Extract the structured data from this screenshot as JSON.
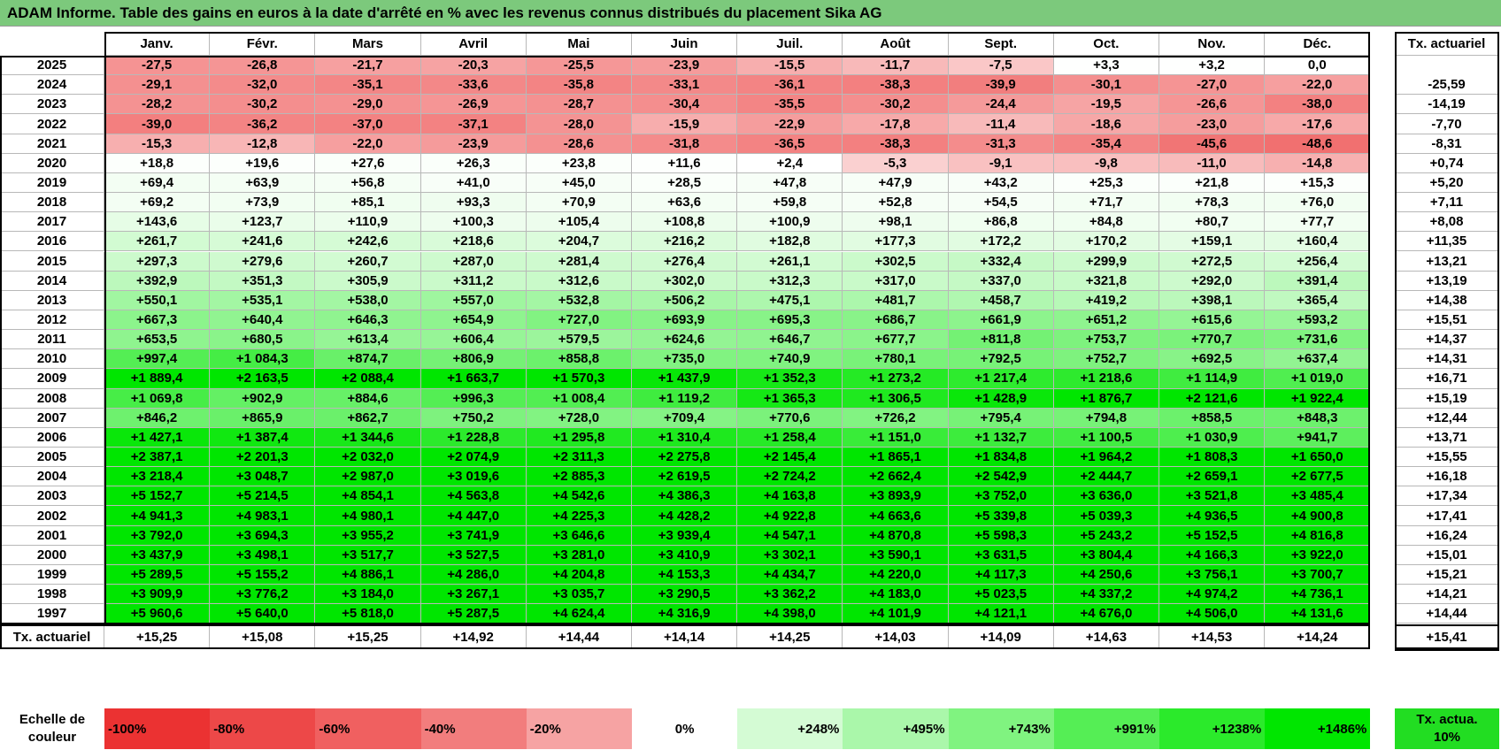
{
  "title": "ADAM Informe. Table des gains en euros à la date d'arrêté en % avec les revenus connus distribués du placement Sika AG",
  "months": [
    "Janv.",
    "Févr.",
    "Mars",
    "Avril",
    "Mai",
    "Juin",
    "Juil.",
    "Août",
    "Sept.",
    "Oct.",
    "Nov.",
    "Déc."
  ],
  "tx_header": "Tx. actuariel",
  "rows": [
    {
      "year": "2025",
      "values": [
        "-27,5",
        "-26,8",
        "-21,7",
        "-20,3",
        "-25,5",
        "-23,9",
        "-15,5",
        "-11,7",
        "-7,5",
        "+3,3",
        "+3,2",
        "0,0"
      ]
    },
    {
      "year": "2024",
      "values": [
        "-29,1",
        "-32,0",
        "-35,1",
        "-33,6",
        "-35,8",
        "-33,1",
        "-36,1",
        "-38,3",
        "-39,9",
        "-30,1",
        "-27,0",
        "-22,0"
      ],
      "tx": "-25,59"
    },
    {
      "year": "2023",
      "values": [
        "-28,2",
        "-30,2",
        "-29,0",
        "-26,9",
        "-28,7",
        "-30,4",
        "-35,5",
        "-30,2",
        "-24,4",
        "-19,5",
        "-26,6",
        "-38,0"
      ],
      "tx": "-14,19"
    },
    {
      "year": "2022",
      "values": [
        "-39,0",
        "-36,2",
        "-37,0",
        "-37,1",
        "-28,0",
        "-15,9",
        "-22,9",
        "-17,8",
        "-11,4",
        "-18,6",
        "-23,0",
        "-17,6"
      ],
      "tx": "-7,70"
    },
    {
      "year": "2021",
      "values": [
        "-15,3",
        "-12,8",
        "-22,0",
        "-23,9",
        "-28,6",
        "-31,8",
        "-36,5",
        "-38,3",
        "-31,3",
        "-35,4",
        "-45,6",
        "-48,6"
      ],
      "tx": "-8,31"
    },
    {
      "year": "2020",
      "values": [
        "+18,8",
        "+19,6",
        "+27,6",
        "+26,3",
        "+23,8",
        "+11,6",
        "+2,4",
        "-5,3",
        "-9,1",
        "-9,8",
        "-11,0",
        "-14,8"
      ],
      "tx": "+0,74"
    },
    {
      "year": "2019",
      "values": [
        "+69,4",
        "+63,9",
        "+56,8",
        "+41,0",
        "+45,0",
        "+28,5",
        "+47,8",
        "+47,9",
        "+43,2",
        "+25,3",
        "+21,8",
        "+15,3"
      ],
      "tx": "+5,20"
    },
    {
      "year": "2018",
      "values": [
        "+69,2",
        "+73,9",
        "+85,1",
        "+93,3",
        "+70,9",
        "+63,6",
        "+59,8",
        "+52,8",
        "+54,5",
        "+71,7",
        "+78,3",
        "+76,0"
      ],
      "tx": "+7,11"
    },
    {
      "year": "2017",
      "values": [
        "+143,6",
        "+123,7",
        "+110,9",
        "+100,3",
        "+105,4",
        "+108,8",
        "+100,9",
        "+98,1",
        "+86,8",
        "+84,8",
        "+80,7",
        "+77,7"
      ],
      "tx": "+8,08"
    },
    {
      "year": "2016",
      "values": [
        "+261,7",
        "+241,6",
        "+242,6",
        "+218,6",
        "+204,7",
        "+216,2",
        "+182,8",
        "+177,3",
        "+172,2",
        "+170,2",
        "+159,1",
        "+160,4"
      ],
      "tx": "+11,35"
    },
    {
      "year": "2015",
      "values": [
        "+297,3",
        "+279,6",
        "+260,7",
        "+287,0",
        "+281,4",
        "+276,4",
        "+261,1",
        "+302,5",
        "+332,4",
        "+299,9",
        "+272,5",
        "+256,4"
      ],
      "tx": "+13,21"
    },
    {
      "year": "2014",
      "values": [
        "+392,9",
        "+351,3",
        "+305,9",
        "+311,2",
        "+312,6",
        "+302,0",
        "+312,3",
        "+317,0",
        "+337,0",
        "+321,8",
        "+292,0",
        "+391,4"
      ],
      "tx": "+13,19"
    },
    {
      "year": "2013",
      "values": [
        "+550,1",
        "+535,1",
        "+538,0",
        "+557,0",
        "+532,8",
        "+506,2",
        "+475,1",
        "+481,7",
        "+458,7",
        "+419,2",
        "+398,1",
        "+365,4"
      ],
      "tx": "+14,38"
    },
    {
      "year": "2012",
      "values": [
        "+667,3",
        "+640,4",
        "+646,3",
        "+654,9",
        "+727,0",
        "+693,9",
        "+695,3",
        "+686,7",
        "+661,9",
        "+651,2",
        "+615,6",
        "+593,2"
      ],
      "tx": "+15,51"
    },
    {
      "year": "2011",
      "values": [
        "+653,5",
        "+680,5",
        "+613,4",
        "+606,4",
        "+579,5",
        "+624,6",
        "+646,7",
        "+677,7",
        "+811,8",
        "+753,7",
        "+770,7",
        "+731,6"
      ],
      "tx": "+14,37"
    },
    {
      "year": "2010",
      "values": [
        "+997,4",
        "+1 084,3",
        "+874,7",
        "+806,9",
        "+858,8",
        "+735,0",
        "+740,9",
        "+780,1",
        "+792,5",
        "+752,7",
        "+692,5",
        "+637,4"
      ],
      "tx": "+14,31"
    },
    {
      "year": "2009",
      "values": [
        "+1 889,4",
        "+2 163,5",
        "+2 088,4",
        "+1 663,7",
        "+1 570,3",
        "+1 437,9",
        "+1 352,3",
        "+1 273,2",
        "+1 217,4",
        "+1 218,6",
        "+1 114,9",
        "+1 019,0"
      ],
      "tx": "+16,71"
    },
    {
      "year": "2008",
      "values": [
        "+1 069,8",
        "+902,9",
        "+884,6",
        "+996,3",
        "+1 008,4",
        "+1 119,2",
        "+1 365,3",
        "+1 306,5",
        "+1 428,9",
        "+1 876,7",
        "+2 121,6",
        "+1 922,4"
      ],
      "tx": "+15,19"
    },
    {
      "year": "2007",
      "values": [
        "+846,2",
        "+865,9",
        "+862,7",
        "+750,2",
        "+728,0",
        "+709,4",
        "+770,6",
        "+726,2",
        "+795,4",
        "+794,8",
        "+858,5",
        "+848,3"
      ],
      "tx": "+12,44"
    },
    {
      "year": "2006",
      "values": [
        "+1 427,1",
        "+1 387,4",
        "+1 344,6",
        "+1 228,8",
        "+1 295,8",
        "+1 310,4",
        "+1 258,4",
        "+1 151,0",
        "+1 132,7",
        "+1 100,5",
        "+1 030,9",
        "+941,7"
      ],
      "tx": "+13,71"
    },
    {
      "year": "2005",
      "values": [
        "+2 387,1",
        "+2 201,3",
        "+2 032,0",
        "+2 074,9",
        "+2 311,3",
        "+2 275,8",
        "+2 145,4",
        "+1 865,1",
        "+1 834,8",
        "+1 964,2",
        "+1 808,3",
        "+1 650,0"
      ],
      "tx": "+15,55"
    },
    {
      "year": "2004",
      "values": [
        "+3 218,4",
        "+3 048,7",
        "+2 987,0",
        "+3 019,6",
        "+2 885,3",
        "+2 619,5",
        "+2 724,2",
        "+2 662,4",
        "+2 542,9",
        "+2 444,7",
        "+2 659,1",
        "+2 677,5"
      ],
      "tx": "+16,18"
    },
    {
      "year": "2003",
      "values": [
        "+5 152,7",
        "+5 214,5",
        "+4 854,1",
        "+4 563,8",
        "+4 542,6",
        "+4 386,3",
        "+4 163,8",
        "+3 893,9",
        "+3 752,0",
        "+3 636,0",
        "+3 521,8",
        "+3 485,4"
      ],
      "tx": "+17,34"
    },
    {
      "year": "2002",
      "values": [
        "+4 941,3",
        "+4 983,1",
        "+4 980,1",
        "+4 447,0",
        "+4 225,3",
        "+4 428,2",
        "+4 922,8",
        "+4 663,6",
        "+5 339,8",
        "+5 039,3",
        "+4 936,5",
        "+4 900,8"
      ],
      "tx": "+17,41"
    },
    {
      "year": "2001",
      "values": [
        "+3 792,0",
        "+3 694,3",
        "+3 955,2",
        "+3 741,9",
        "+3 646,6",
        "+3 939,4",
        "+4 547,1",
        "+4 870,8",
        "+5 598,3",
        "+5 243,2",
        "+5 152,5",
        "+4 816,8"
      ],
      "tx": "+16,24"
    },
    {
      "year": "2000",
      "values": [
        "+3 437,9",
        "+3 498,1",
        "+3 517,7",
        "+3 527,5",
        "+3 281,0",
        "+3 410,9",
        "+3 302,1",
        "+3 590,1",
        "+3 631,5",
        "+3 804,4",
        "+4 166,3",
        "+3 922,0"
      ],
      "tx": "+15,01"
    },
    {
      "year": "1999",
      "values": [
        "+5 289,5",
        "+5 155,2",
        "+4 886,1",
        "+4 286,0",
        "+4 204,8",
        "+4 153,3",
        "+4 434,7",
        "+4 220,0",
        "+4 117,3",
        "+4 250,6",
        "+3 756,1",
        "+3 700,7"
      ],
      "tx": "+15,21"
    },
    {
      "year": "1998",
      "values": [
        "+3 909,9",
        "+3 776,2",
        "+3 184,0",
        "+3 267,1",
        "+3 035,7",
        "+3 290,5",
        "+3 362,2",
        "+4 183,0",
        "+5 023,5",
        "+4 337,2",
        "+4 974,2",
        "+4 736,1"
      ],
      "tx": "+14,21"
    },
    {
      "year": "1997",
      "values": [
        "+5 960,6",
        "+5 640,0",
        "+5 818,0",
        "+5 287,5",
        "+4 624,4",
        "+4 316,9",
        "+4 398,0",
        "+4 101,9",
        "+4 121,1",
        "+4 676,0",
        "+4 506,0",
        "+4 131,6"
      ],
      "tx": "+14,44"
    }
  ],
  "footer": {
    "label": "Tx. actuariel",
    "values": [
      "+15,25",
      "+15,08",
      "+15,25",
      "+14,92",
      "+14,44",
      "+14,14",
      "+14,25",
      "+14,03",
      "+14,09",
      "+14,63",
      "+14,53",
      "+14,24"
    ],
    "tx": "+15,41"
  },
  "legend": {
    "label": "Echelle de couleur",
    "items": [
      "-100%",
      "-80%",
      "-60%",
      "-40%",
      "-20%",
      "0%",
      "+248%",
      "+495%",
      "+743%",
      "+991%",
      "+1238%",
      "+1486%"
    ],
    "tx_label": "Tx. actua. 10%"
  }
}
